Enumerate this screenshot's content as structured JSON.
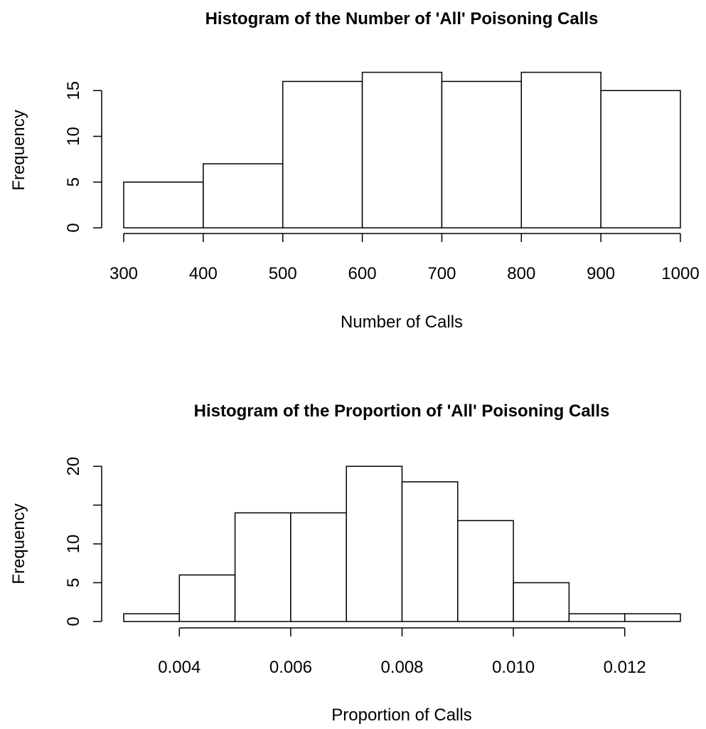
{
  "chart_data": [
    {
      "type": "bar",
      "title": "Histogram of the Number of 'All' Poisoning Calls",
      "xlabel": "Number of Calls",
      "ylabel": "Frequency",
      "bins": [
        [
          300,
          400
        ],
        [
          400,
          500
        ],
        [
          500,
          600
        ],
        [
          600,
          700
        ],
        [
          700,
          800
        ],
        [
          800,
          900
        ],
        [
          900,
          1000
        ]
      ],
      "values": [
        5,
        7,
        16,
        17,
        16,
        17,
        15
      ],
      "x_ticks": [
        300,
        400,
        500,
        600,
        700,
        800,
        900,
        1000
      ],
      "x_tick_labels": [
        "300",
        "400",
        "500",
        "600",
        "700",
        "800",
        "900",
        "1000"
      ],
      "y_ticks": [
        0,
        5,
        10,
        15
      ],
      "y_tick_labels": [
        "0",
        "5",
        "10",
        "15"
      ],
      "xlim": [
        300,
        1000
      ],
      "ylim": [
        0,
        17
      ],
      "grid": false
    },
    {
      "type": "bar",
      "title": "Histogram of the Proportion of 'All' Poisoning Calls",
      "xlabel": "Proportion of Calls",
      "ylabel": "Frequency",
      "bins": [
        [
          0.003,
          0.004
        ],
        [
          0.004,
          0.005
        ],
        [
          0.005,
          0.006
        ],
        [
          0.006,
          0.007
        ],
        [
          0.007,
          0.008
        ],
        [
          0.008,
          0.009
        ],
        [
          0.009,
          0.01
        ],
        [
          0.01,
          0.011
        ],
        [
          0.011,
          0.012
        ],
        [
          0.012,
          0.013
        ]
      ],
      "values": [
        1,
        6,
        14,
        14,
        20,
        18,
        13,
        5,
        1,
        1
      ],
      "x_ticks": [
        0.004,
        0.006,
        0.008,
        0.01,
        0.012
      ],
      "x_tick_labels": [
        "0.004",
        "0.006",
        "0.008",
        "0.010",
        "0.012"
      ],
      "y_ticks": [
        0,
        5,
        10,
        20
      ],
      "y_tick_labels": [
        "0",
        "5",
        "10",
        "20"
      ],
      "y_minor_ticks": [
        15
      ],
      "xlim": [
        0.003,
        0.013
      ],
      "ylim": [
        0,
        20
      ],
      "grid": false
    }
  ]
}
